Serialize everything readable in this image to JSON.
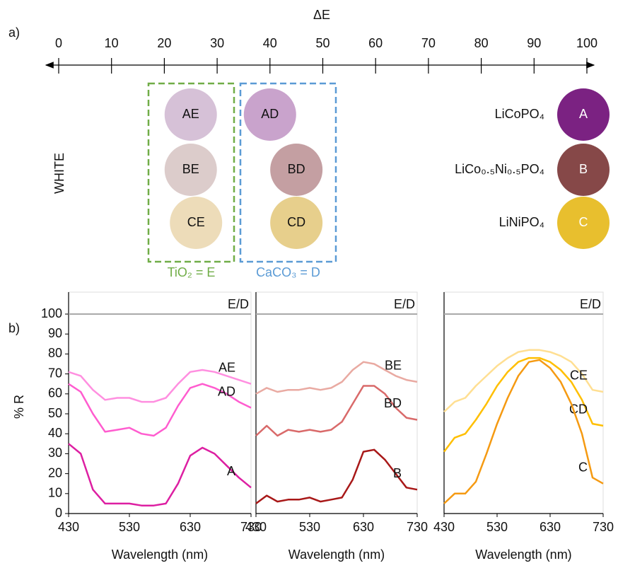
{
  "chart_data": [
    {
      "type": "scale",
      "panel_label": "a)",
      "xlabel": "ΔE",
      "xlim": [
        0,
        100
      ],
      "xticks": [
        0,
        10,
        20,
        30,
        40,
        50,
        60,
        70,
        80,
        90,
        100
      ],
      "side_label": "WHITE",
      "groups": [
        {
          "label": "TiO₂ = E",
          "color": "#70ad47",
          "points": [
            {
              "name": "AE",
              "value": 25,
              "color": "#d6c1d7"
            },
            {
              "name": "BE",
              "value": 25,
              "color": "#dccccb"
            },
            {
              "name": "CE",
              "value": 26,
              "color": "#eddcb9"
            }
          ]
        },
        {
          "label": "CaCO₃ = D",
          "color": "#5b9bd5",
          "points": [
            {
              "name": "AD",
              "value": 40,
              "color": "#c9a3cc"
            },
            {
              "name": "BD",
              "value": 45,
              "color": "#c49fa2"
            },
            {
              "name": "CD",
              "value": 45,
              "color": "#e7cf8c"
            }
          ]
        }
      ],
      "references": [
        {
          "name": "A",
          "label": "LiCoPO₄",
          "color": "#7b2282"
        },
        {
          "name": "B",
          "label": "LiCo₀.₅Ni₀.₅PO₄",
          "color": "#864848"
        },
        {
          "name": "C",
          "label": "LiNiPO₄",
          "color": "#e8bf2e"
        }
      ]
    },
    {
      "type": "line",
      "panel_label": "b)",
      "ylabel": "% R",
      "xlabel": "Wavelength (nm)",
      "x": [
        430,
        450,
        470,
        490,
        510,
        530,
        550,
        570,
        590,
        610,
        630,
        650,
        670,
        690,
        710,
        730
      ],
      "xlim": [
        430,
        730
      ],
      "xticks": [
        430,
        530,
        630,
        730
      ],
      "ylim": [
        0,
        111
      ],
      "yticks": [
        0,
        10,
        20,
        30,
        40,
        50,
        60,
        70,
        80,
        90,
        100
      ],
      "hline": {
        "value": 100,
        "label": "E/D",
        "color": "#aaaaaa"
      },
      "series": [
        {
          "name": "AE",
          "color": "#ff8fe0",
          "values": [
            71,
            69,
            62,
            57,
            58,
            58,
            56,
            56,
            58,
            65,
            71,
            72,
            71,
            69,
            67,
            65
          ]
        },
        {
          "name": "AD",
          "color": "#ff5ccf",
          "values": [
            65,
            61,
            50,
            41,
            42,
            43,
            40,
            39,
            43,
            54,
            63,
            65,
            63,
            60,
            56,
            53
          ]
        },
        {
          "name": "A",
          "color": "#dd1fa2",
          "values": [
            35,
            30,
            12,
            5,
            5,
            5,
            4,
            4,
            5,
            15,
            29,
            33,
            30,
            24,
            18,
            13
          ]
        }
      ]
    },
    {
      "type": "line",
      "xlabel": "Wavelength (nm)",
      "x": [
        430,
        450,
        470,
        490,
        510,
        530,
        550,
        570,
        590,
        610,
        630,
        650,
        670,
        690,
        710,
        730
      ],
      "xlim": [
        430,
        730
      ],
      "xticks": [
        430,
        530,
        630,
        730
      ],
      "ylim": [
        0,
        111
      ],
      "hline": {
        "value": 100,
        "label": "E/D",
        "color": "#aaaaaa"
      },
      "series": [
        {
          "name": "BE",
          "color": "#e9aaa2",
          "values": [
            60,
            63,
            61,
            62,
            62,
            63,
            62,
            63,
            66,
            72,
            76,
            75,
            72,
            69,
            67,
            66
          ]
        },
        {
          "name": "BD",
          "color": "#d96a6a",
          "values": [
            39,
            44,
            39,
            42,
            41,
            42,
            41,
            42,
            46,
            55,
            64,
            64,
            60,
            53,
            48,
            47
          ]
        },
        {
          "name": "B",
          "color": "#a81818",
          "values": [
            5,
            9,
            6,
            7,
            7,
            8,
            6,
            7,
            8,
            17,
            31,
            32,
            27,
            20,
            13,
            12
          ]
        }
      ]
    },
    {
      "type": "line",
      "xlabel": "Wavelength (nm)",
      "x": [
        430,
        450,
        470,
        490,
        510,
        530,
        550,
        570,
        590,
        610,
        630,
        650,
        670,
        690,
        710,
        730
      ],
      "xlim": [
        430,
        730
      ],
      "xticks": [
        430,
        530,
        630,
        730
      ],
      "ylim": [
        0,
        111
      ],
      "hline": {
        "value": 100,
        "label": "E/D",
        "color": "#aaaaaa"
      },
      "series": [
        {
          "name": "CE",
          "color": "#ffdf92",
          "values": [
            51,
            56,
            58,
            64,
            69,
            74,
            78,
            81,
            82,
            82,
            81,
            79,
            76,
            70,
            62,
            61
          ]
        },
        {
          "name": "CD",
          "color": "#ffbf00",
          "values": [
            31,
            38,
            40,
            47,
            55,
            64,
            71,
            76,
            78,
            78,
            76,
            72,
            66,
            57,
            45,
            44
          ]
        },
        {
          "name": "C",
          "color": "#f59a12",
          "values": [
            5,
            10,
            10,
            16,
            30,
            45,
            58,
            69,
            76,
            77,
            73,
            66,
            55,
            40,
            18,
            15
          ]
        }
      ]
    }
  ]
}
